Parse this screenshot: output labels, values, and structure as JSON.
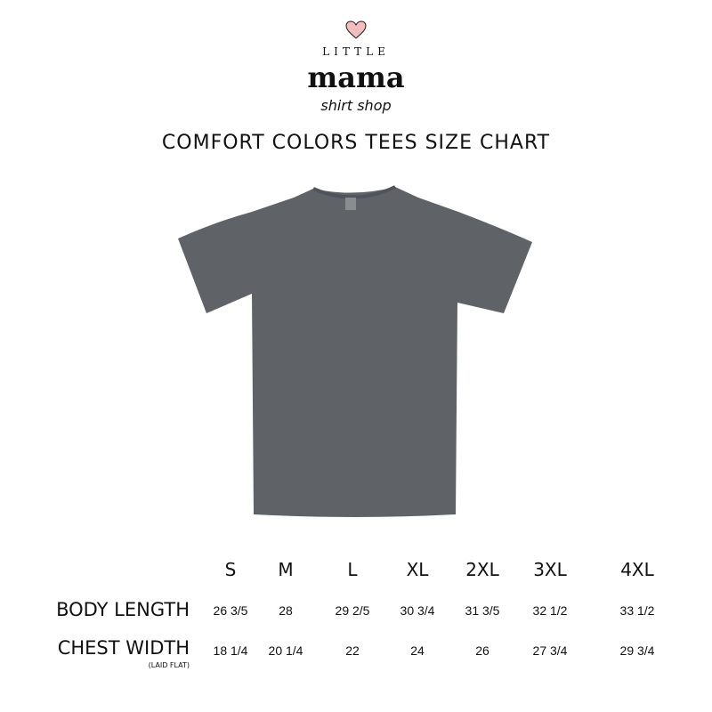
{
  "logo": {
    "line1": "LITTLE",
    "line2": "mama",
    "line3": "shirt shop",
    "heart_color": "#f4bcbc"
  },
  "title": "COMFORT COLORS TEES SIZE CHART",
  "shirt": {
    "color": "#5f6367",
    "icon": "tshirt"
  },
  "table": {
    "sizes": [
      "S",
      "M",
      "L",
      "XL",
      "2XL",
      "3XL",
      "4XL"
    ],
    "rows": [
      {
        "label": "BODY LENGTH",
        "sublabel": "",
        "values": [
          "26 3/5",
          "28",
          "29 2/5",
          "30 3/4",
          "31 3/5",
          "32 1/2",
          "33 1/2"
        ]
      },
      {
        "label": "CHEST WIDTH",
        "sublabel": "(LAID FLAT)",
        "values": [
          "18 1/4",
          "20 1/4",
          "22",
          "24",
          "26",
          "27 3/4",
          "29 3/4"
        ]
      }
    ]
  }
}
